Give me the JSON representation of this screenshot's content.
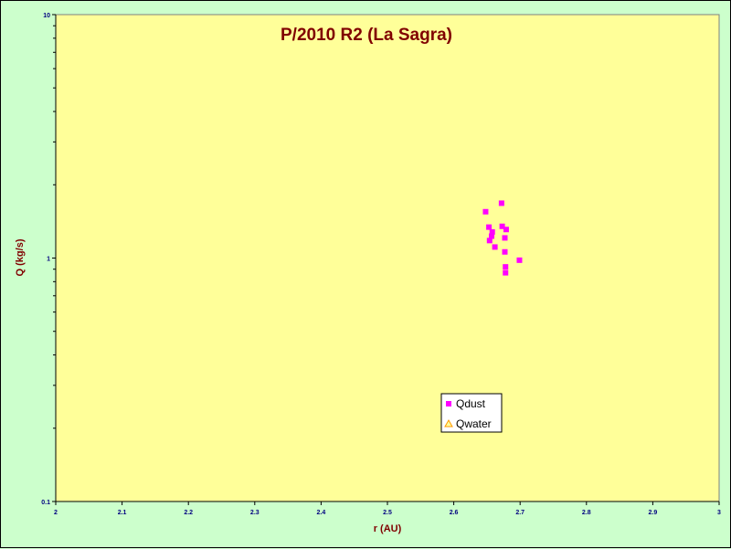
{
  "chart_data": {
    "type": "scatter",
    "title": "P/2010 R2 (La Sagra)",
    "xlabel": "r (AU)",
    "ylabel": "Q (kg/s)",
    "xlim": [
      2,
      3
    ],
    "ylim": [
      0.1,
      10
    ],
    "yscale": "log",
    "x_ticks": [
      "2",
      "2.1",
      "2.2",
      "2.3",
      "2.4",
      "2.5",
      "2.6",
      "2.7",
      "2.8",
      "2.9",
      "3"
    ],
    "y_ticks": [
      {
        "value": 10,
        "label": "10"
      },
      {
        "value": 1,
        "label": "1"
      },
      {
        "value": 0.1,
        "label": "0.1"
      }
    ],
    "grid": false,
    "legend_position": "bottom-center",
    "series": [
      {
        "name": "Qdust",
        "marker": "square",
        "color": "#ff00ff",
        "points": [
          {
            "x": 2.648,
            "y": 1.55
          },
          {
            "x": 2.672,
            "y": 1.68
          },
          {
            "x": 2.653,
            "y": 1.34
          },
          {
            "x": 2.658,
            "y": 1.28
          },
          {
            "x": 2.657,
            "y": 1.23
          },
          {
            "x": 2.654,
            "y": 1.18
          },
          {
            "x": 2.673,
            "y": 1.35
          },
          {
            "x": 2.679,
            "y": 1.31
          },
          {
            "x": 2.677,
            "y": 1.21
          },
          {
            "x": 2.662,
            "y": 1.11
          },
          {
            "x": 2.677,
            "y": 1.06
          },
          {
            "x": 2.699,
            "y": 0.98
          },
          {
            "x": 2.678,
            "y": 0.92
          },
          {
            "x": 2.678,
            "y": 0.87
          }
        ]
      },
      {
        "name": "Qwater",
        "marker": "triangle",
        "color": "#ff9900",
        "points": []
      }
    ],
    "colors": {
      "plot_background": "#ffff99",
      "page_background": "#ccffcc",
      "title": "#800000",
      "axis_title": "#800000",
      "tick_label": "#000080"
    }
  }
}
